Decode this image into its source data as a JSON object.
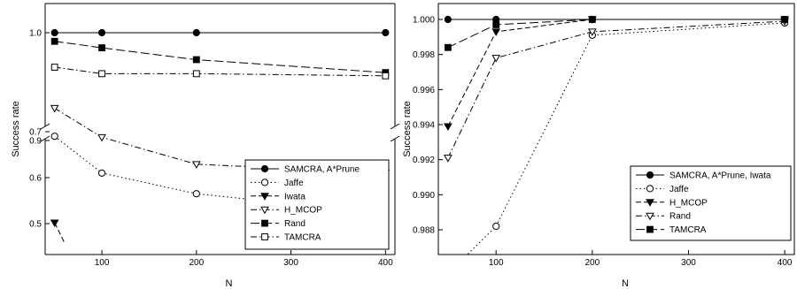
{
  "chart_data": [
    {
      "type": "line",
      "xlabel": "N",
      "ylabel": "Success rate",
      "x_ticks": [
        100,
        200,
        300,
        400
      ],
      "y_ticks_upper": [
        "0.9",
        "1.0"
      ],
      "y_ticks_lower": [
        "0.5",
        "0.6",
        "0.7"
      ],
      "xlim": [
        40,
        410
      ],
      "ylim_upper": [
        0.82,
        1.05
      ],
      "ylim_lower": [
        0.46,
        0.72
      ],
      "broken_y_axis": true,
      "legend_position": "lower-right",
      "series": [
        {
          "name": "SAMCRA, A*Prune",
          "marker": "circle-filled",
          "dash": "solid",
          "x": [
            50,
            100,
            200,
            400
          ],
          "y": [
            1.0,
            1.0,
            1.0,
            1.0
          ]
        },
        {
          "name": "Jaffe",
          "marker": "circle-open",
          "dash": "dot",
          "x": [
            50,
            100,
            200,
            400
          ],
          "y": [
            0.69,
            0.61,
            0.565,
            0.522
          ]
        },
        {
          "name": "Iwata",
          "marker": "triangle-filled",
          "dash": "dash",
          "x": [
            50,
            60
          ],
          "y": [
            0.502,
            0.46
          ]
        },
        {
          "name": "H_MCOP",
          "marker": "triangle-open",
          "dash": "dashdot",
          "x": [
            50,
            100,
            200,
            400
          ],
          "y": [
            0.93,
            0.903,
            0.878,
            0.87
          ]
        },
        {
          "name": "Rand",
          "marker": "square-filled",
          "dash": "longdash",
          "x": [
            50,
            100,
            200,
            400
          ],
          "y": [
            0.992,
            0.986,
            0.975,
            0.963
          ]
        },
        {
          "name": "TAMCRA",
          "marker": "square-open",
          "dash": "dashdot",
          "x": [
            50,
            100,
            200,
            400
          ],
          "y": [
            0.968,
            0.962,
            0.962,
            0.96
          ]
        }
      ]
    },
    {
      "type": "line",
      "xlabel": "N",
      "ylabel": "Success rate",
      "x_ticks": [
        100,
        200,
        300,
        400
      ],
      "y_ticks": [
        "0.988",
        "0.990",
        "0.992",
        "0.994",
        "0.996",
        "0.998",
        "1.000"
      ],
      "xlim": [
        40,
        410
      ],
      "ylim": [
        0.987,
        1.0006
      ],
      "legend_position": "lower-right",
      "series": [
        {
          "name": "SAMCRA, A*Prune, Iwata",
          "marker": "circle-filled",
          "dash": "solid",
          "x": [
            50,
            100,
            200,
            400
          ],
          "y": [
            1.0,
            1.0,
            1.0,
            1.0
          ]
        },
        {
          "name": "Jaffe",
          "marker": "circle-open",
          "dash": "dot",
          "x": [
            50,
            100,
            200,
            400
          ],
          "y": [
            0.9855,
            0.9882,
            0.9991,
            0.9998
          ]
        },
        {
          "name": "H_MCOP",
          "marker": "triangle-filled",
          "dash": "dash",
          "x": [
            50,
            100,
            200,
            400
          ],
          "y": [
            0.9939,
            0.9993,
            1.0,
            1.0
          ]
        },
        {
          "name": "Rand",
          "marker": "triangle-open",
          "dash": "dashdot",
          "x": [
            50,
            100,
            200,
            400
          ],
          "y": [
            0.9921,
            0.9978,
            0.9993,
            0.9999
          ]
        },
        {
          "name": "TAMCRA",
          "marker": "square-filled",
          "dash": "longdash",
          "x": [
            50,
            100,
            200,
            400
          ],
          "y": [
            0.9984,
            0.9997,
            1.0,
            1.0
          ]
        }
      ]
    }
  ]
}
